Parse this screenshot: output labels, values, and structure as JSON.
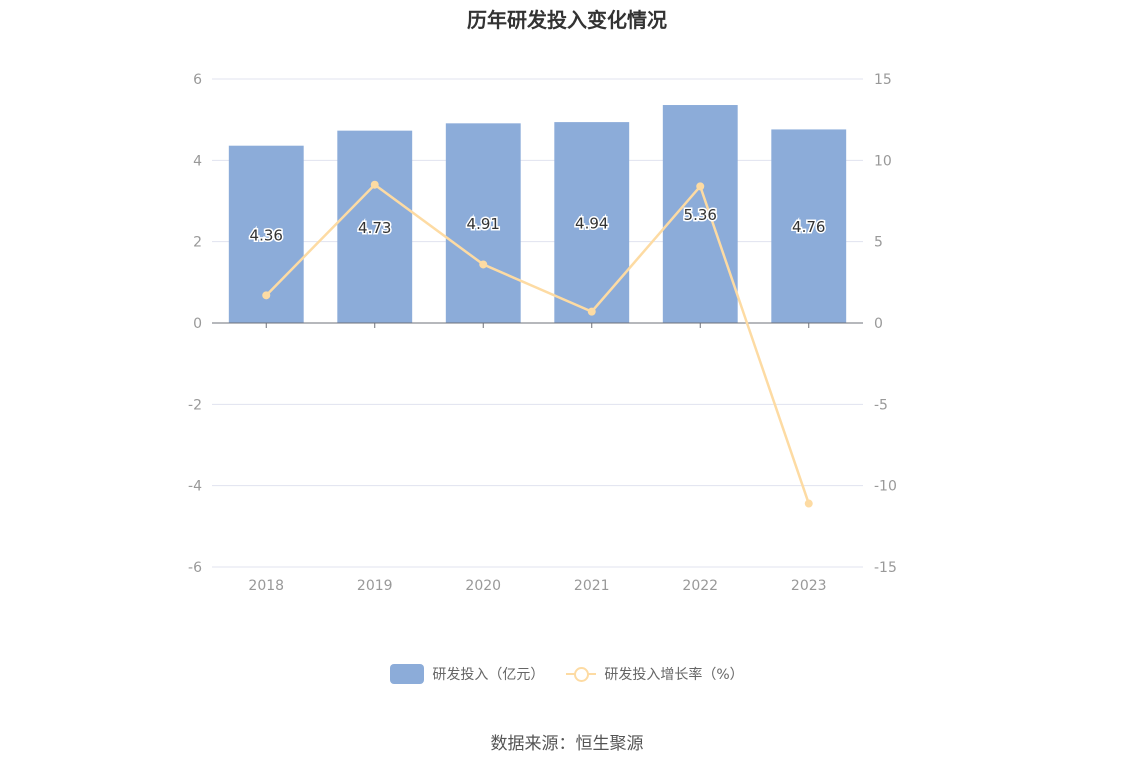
{
  "chart_data": {
    "type": "bar",
    "title": "历年研发投入变化情况",
    "categories": [
      "2018",
      "2019",
      "2020",
      "2021",
      "2022",
      "2023"
    ],
    "series": [
      {
        "name": "研发投入（亿元）",
        "type": "bar",
        "axis": "left",
        "values": [
          4.36,
          4.73,
          4.91,
          4.94,
          5.36,
          4.76
        ],
        "color": "#8cacd9"
      },
      {
        "name": "研发投入增长率（%）",
        "type": "line",
        "axis": "right",
        "values": [
          1.7,
          8.5,
          3.6,
          0.7,
          8.4,
          -11.1
        ],
        "color": "#fddba3"
      }
    ],
    "y_left": {
      "min": -6,
      "max": 6,
      "ticks": [
        -6,
        -4,
        -2,
        0,
        2,
        4,
        6
      ]
    },
    "y_right": {
      "min": -15,
      "max": 15,
      "ticks": [
        -15,
        -10,
        -5,
        0,
        5,
        10,
        15
      ]
    },
    "grid": true,
    "legend_position": "bottom-center"
  },
  "source": "数据来源：恒生聚源"
}
